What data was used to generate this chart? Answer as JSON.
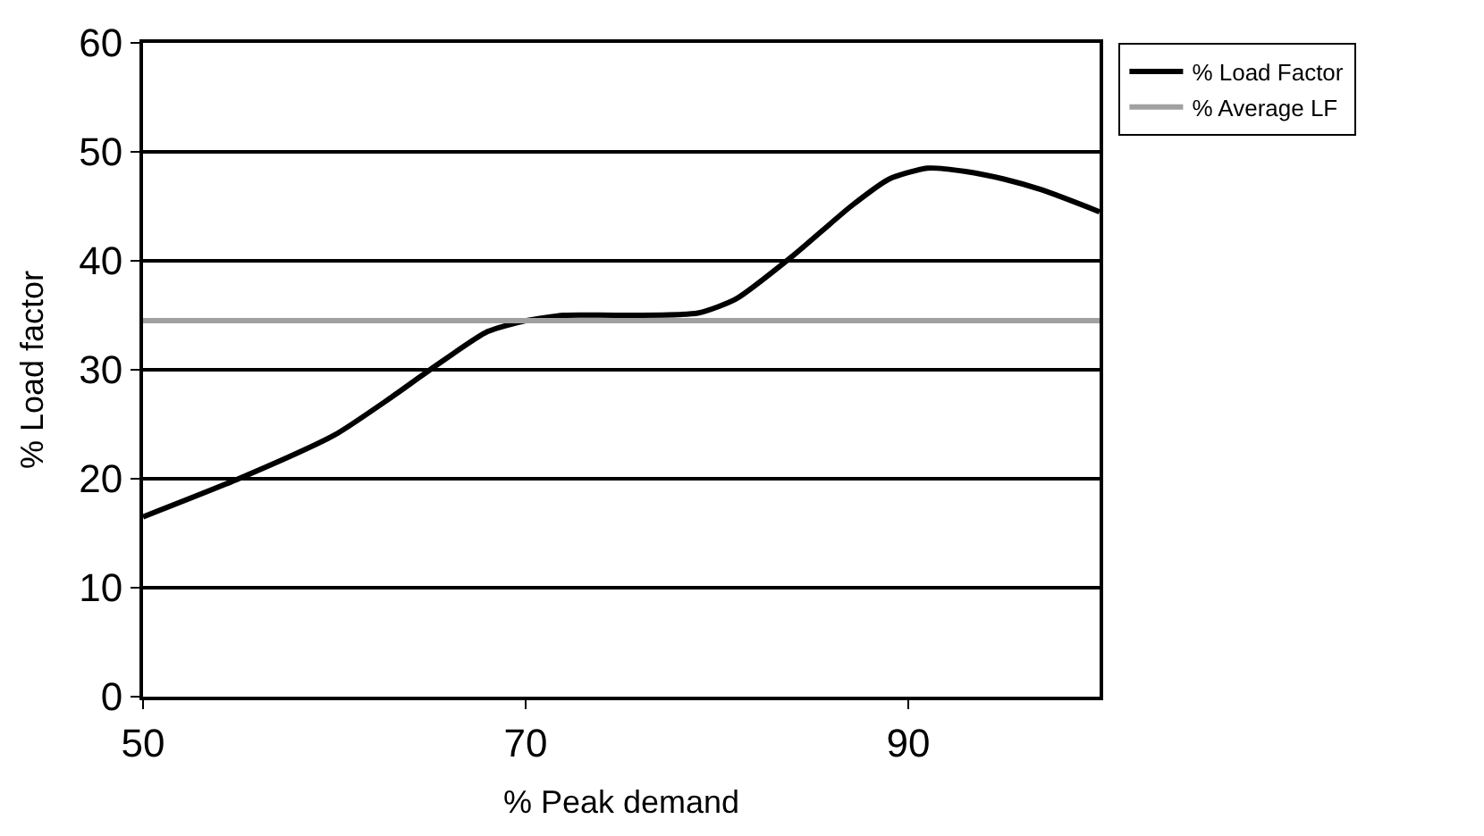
{
  "chart_data": {
    "type": "line",
    "xlabel": "% Peak demand",
    "ylabel": "% Load factor",
    "xlim": [
      50,
      100
    ],
    "xticks": [
      50,
      70,
      90
    ],
    "ylim": [
      0,
      60
    ],
    "yticks": [
      0,
      10,
      20,
      30,
      40,
      50,
      60
    ],
    "grid": "y",
    "legend": "top right",
    "marker": "none",
    "line_style": "solid",
    "series": [
      {
        "name": "% Load Factor",
        "color": "#000000",
        "x": [
          50,
          55,
          60,
          63,
          65,
          68,
          70,
          72,
          75,
          79,
          81,
          84,
          87,
          89,
          91,
          93,
          95,
          97,
          100
        ],
        "values": [
          16.5,
          20,
          24,
          27.5,
          30,
          33.5,
          34.5,
          35,
          35,
          35.2,
          36.5,
          40.5,
          45,
          47.5,
          48.5,
          48.2,
          47.5,
          46.5,
          44.5
        ]
      },
      {
        "name": "% Average LF",
        "color": "#a0a0a0",
        "x": [
          50,
          100
        ],
        "values": [
          34.5,
          34.5
        ]
      }
    ]
  }
}
